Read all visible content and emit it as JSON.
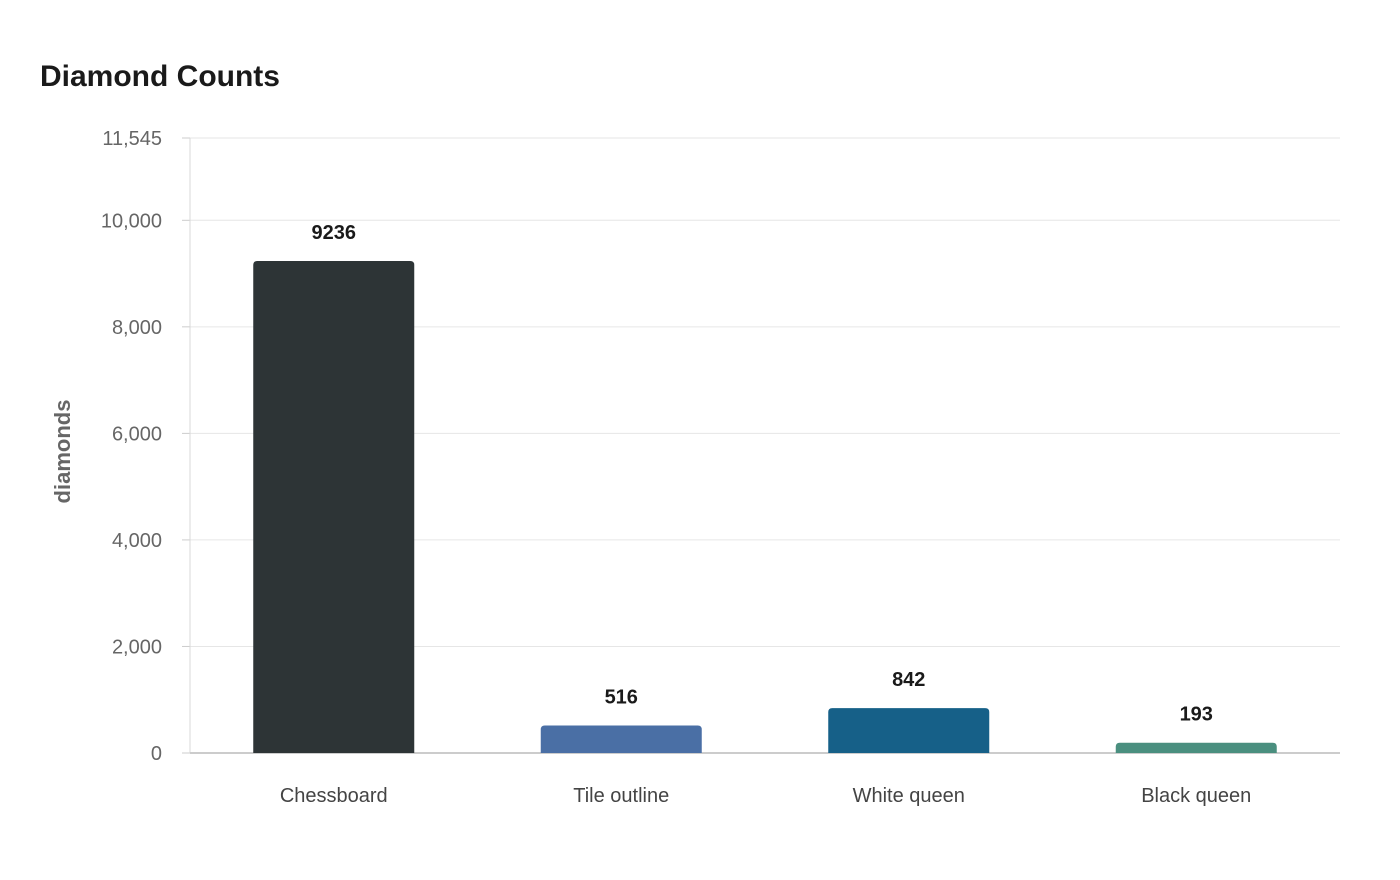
{
  "chart_data": {
    "type": "bar",
    "title": "Diamond Counts",
    "xlabel": "",
    "ylabel": "diamonds",
    "categories": [
      "Chessboard",
      "Tile outline",
      "White queen",
      "Black queen"
    ],
    "values": [
      9236,
      516,
      842,
      193
    ],
    "colors": [
      "#2d3436",
      "#4a6fa5",
      "#166088",
      "#4a8f7f"
    ],
    "ylim": [
      0,
      11545
    ],
    "yticks": [
      0,
      2000,
      4000,
      6000,
      8000,
      10000,
      11545
    ],
    "ytick_labels": [
      "0",
      "2,000",
      "4,000",
      "6,000",
      "8,000",
      "10,000",
      "11,545"
    ],
    "grid": true,
    "legend": "none"
  }
}
